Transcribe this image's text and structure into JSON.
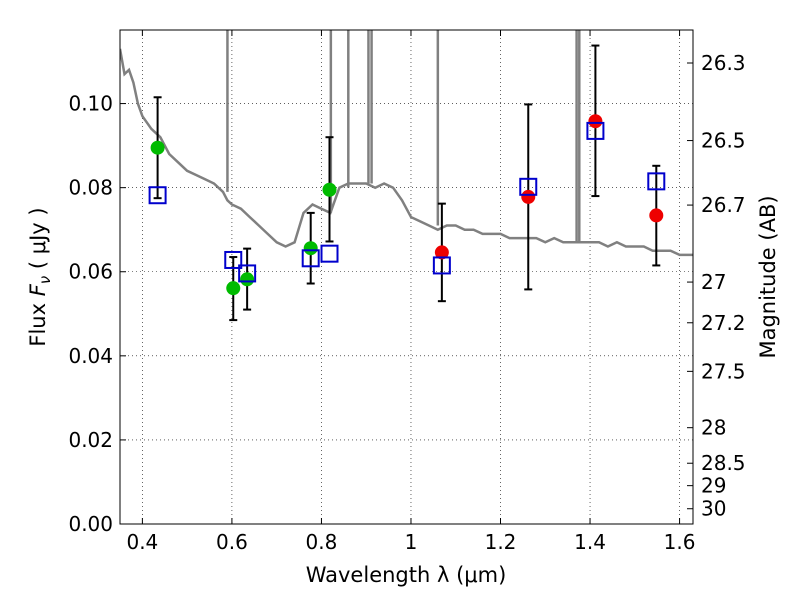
{
  "chart_data": {
    "type": "scatter",
    "title": "",
    "xlabel": "Wavelength  λ (μm)",
    "ylabel_left": {
      "prefix": "Flux  ",
      "symbol": "F",
      "subscript": "ν",
      "unit": " ( μJy )"
    },
    "ylabel_right": "Magnitude (AB)",
    "xlim": [
      0.35,
      1.63
    ],
    "ylim": [
      0.0,
      0.1175
    ],
    "grid": true,
    "x_ticks": [
      0.4,
      0.6,
      0.8,
      1.0,
      1.2,
      1.4,
      1.6
    ],
    "x_tick_labels": [
      "0.4",
      "0.6",
      "0.8",
      "1",
      "1.2",
      "1.4",
      "1.6"
    ],
    "y_ticks": [
      0.0,
      0.02,
      0.04,
      0.06,
      0.08,
      0.1
    ],
    "y_tick_labels": [
      "0.00",
      "0.02",
      "0.04",
      "0.06",
      "0.08",
      "0.10"
    ],
    "mag_ticks": [
      26.3,
      26.5,
      26.7,
      27,
      27.2,
      27.5,
      28,
      28.5,
      29,
      30
    ],
    "mag_tick_labels": [
      "26.3",
      "26.5",
      "26.7",
      "27",
      "27.2",
      "27.5",
      "28",
      "28.5",
      "29",
      "30"
    ],
    "colors": {
      "model": "#808080",
      "observed_optical": "#00bb00",
      "observed_infrared": "#ee0000",
      "model_photometry": "#0000cc",
      "errorbar": "#000000"
    },
    "series": [
      {
        "kind": "line",
        "color": "#808080",
        "x": [
          0.35,
          0.36,
          0.37,
          0.38,
          0.39,
          0.4,
          0.42,
          0.44,
          0.46,
          0.48,
          0.5,
          0.52,
          0.54,
          0.56,
          0.58,
          0.59,
          0.6,
          0.62,
          0.64,
          0.66,
          0.68,
          0.7,
          0.72,
          0.74,
          0.76,
          0.78,
          0.8,
          0.82,
          0.84,
          0.86,
          0.88,
          0.9,
          0.92,
          0.94,
          0.96,
          0.98,
          1.0,
          1.02,
          1.04,
          1.06,
          1.08,
          1.1,
          1.12,
          1.14,
          1.16,
          1.18,
          1.2,
          1.22,
          1.24,
          1.26,
          1.28,
          1.3,
          1.32,
          1.34,
          1.36,
          1.38,
          1.4,
          1.42,
          1.44,
          1.46,
          1.48,
          1.5,
          1.52,
          1.54,
          1.56,
          1.58,
          1.6,
          1.63
        ],
        "y": [
          0.113,
          0.107,
          0.108,
          0.105,
          0.1,
          0.097,
          0.094,
          0.092,
          0.088,
          0.086,
          0.084,
          0.083,
          0.082,
          0.081,
          0.079,
          0.077,
          0.076,
          0.075,
          0.073,
          0.071,
          0.069,
          0.067,
          0.066,
          0.067,
          0.074,
          0.076,
          0.075,
          0.074,
          0.08,
          0.081,
          0.081,
          0.081,
          0.08,
          0.081,
          0.08,
          0.077,
          0.073,
          0.072,
          0.071,
          0.07,
          0.071,
          0.071,
          0.07,
          0.07,
          0.069,
          0.069,
          0.069,
          0.068,
          0.068,
          0.068,
          0.068,
          0.067,
          0.068,
          0.067,
          0.067,
          0.067,
          0.067,
          0.067,
          0.066,
          0.067,
          0.066,
          0.066,
          0.066,
          0.065,
          0.065,
          0.065,
          0.064,
          0.064
        ],
        "spikes_x": [
          0.59,
          0.821,
          0.86,
          0.905,
          0.912,
          1.06,
          1.37,
          1.376
        ]
      },
      {
        "kind": "errorbar",
        "color": "#000000",
        "points": [
          {
            "x": 0.434,
            "y": 0.0895,
            "lo": 0.0775,
            "hi": 0.1015
          },
          {
            "x": 0.603,
            "y": 0.0561,
            "lo": 0.0485,
            "hi": 0.0635
          },
          {
            "x": 0.634,
            "y": 0.0582,
            "lo": 0.051,
            "hi": 0.0655
          },
          {
            "x": 0.776,
            "y": 0.0656,
            "lo": 0.0572,
            "hi": 0.074
          },
          {
            "x": 0.818,
            "y": 0.0795,
            "lo": 0.0672,
            "hi": 0.092
          },
          {
            "x": 1.069,
            "y": 0.0646,
            "lo": 0.053,
            "hi": 0.0762
          },
          {
            "x": 1.262,
            "y": 0.0778,
            "lo": 0.0558,
            "hi": 0.0998
          },
          {
            "x": 1.412,
            "y": 0.0958,
            "lo": 0.078,
            "hi": 0.1138
          },
          {
            "x": 1.548,
            "y": 0.0734,
            "lo": 0.0615,
            "hi": 0.0852
          }
        ]
      },
      {
        "kind": "points",
        "color": "#00bb00",
        "x": [
          0.434,
          0.603,
          0.634,
          0.776,
          0.818
        ],
        "y": [
          0.0895,
          0.0561,
          0.0582,
          0.0656,
          0.0795
        ]
      },
      {
        "kind": "points",
        "color": "#ee0000",
        "x": [
          1.069,
          1.262,
          1.412,
          1.548
        ],
        "y": [
          0.0646,
          0.0778,
          0.0958,
          0.0734
        ]
      },
      {
        "kind": "squares",
        "color": "#0000cc",
        "x": [
          0.434,
          0.603,
          0.634,
          0.776,
          0.818,
          1.069,
          1.262,
          1.412,
          1.548
        ],
        "y": [
          0.0782,
          0.0628,
          0.0596,
          0.0632,
          0.0643,
          0.0615,
          0.0802,
          0.0935,
          0.0815
        ]
      }
    ]
  }
}
